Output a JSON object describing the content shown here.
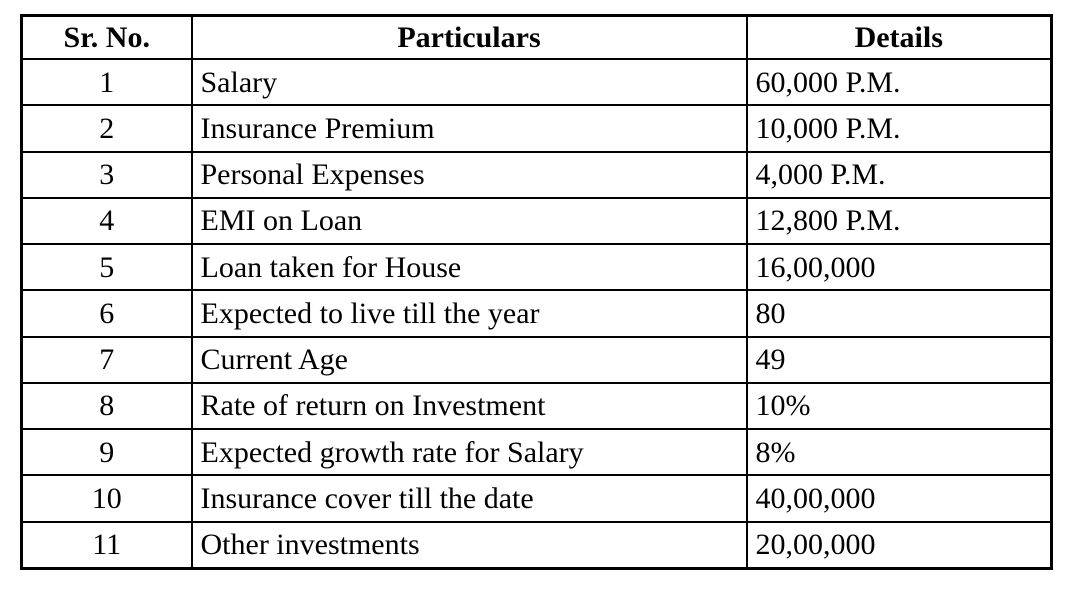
{
  "colors": {
    "border": "#000000",
    "background": "#ffffff",
    "text": "#000000"
  },
  "table": {
    "headers": {
      "sr": "Sr. No.",
      "particulars": "Particulars",
      "details": "Details"
    },
    "rows": [
      {
        "sr": "1",
        "particulars": "Salary",
        "details": "60,000 P.M."
      },
      {
        "sr": "2",
        "particulars": "Insurance Premium",
        "details": "10,000 P.M."
      },
      {
        "sr": "3",
        "particulars": "Personal Expenses",
        "details": "4,000 P.M."
      },
      {
        "sr": "4",
        "particulars": "EMI on Loan",
        "details": "12,800 P.M."
      },
      {
        "sr": "5",
        "particulars": "Loan taken for House",
        "details": "16,00,000"
      },
      {
        "sr": "6",
        "particulars": "Expected to live till the year",
        "details": "80"
      },
      {
        "sr": "7",
        "particulars": "Current Age",
        "details": "49"
      },
      {
        "sr": "8",
        "particulars": "Rate of return on Investment",
        "details": "10%"
      },
      {
        "sr": "9",
        "particulars": "Expected growth rate for Salary",
        "details": "8%"
      },
      {
        "sr": "10",
        "particulars": "Insurance cover till the date",
        "details": "40,00,000"
      },
      {
        "sr": "11",
        "particulars": "Other investments",
        "details": "20,00,000"
      }
    ]
  },
  "chart_data": {
    "type": "table",
    "title": "",
    "columns": [
      "Sr. No.",
      "Particulars",
      "Details"
    ],
    "rows": [
      [
        "1",
        "Salary",
        "60,000 P.M."
      ],
      [
        "2",
        "Insurance Premium",
        "10,000 P.M."
      ],
      [
        "3",
        "Personal Expenses",
        "4,000 P.M."
      ],
      [
        "4",
        "EMI on Loan",
        "12,800 P.M."
      ],
      [
        "5",
        "Loan taken for House",
        "16,00,000"
      ],
      [
        "6",
        "Expected to live till the year",
        "80"
      ],
      [
        "7",
        "Current Age",
        "49"
      ],
      [
        "8",
        "Rate of return on Investment",
        "10%"
      ],
      [
        "9",
        "Expected growth rate for Salary",
        "8%"
      ],
      [
        "10",
        "Insurance cover till the date",
        "40,00,000"
      ],
      [
        "11",
        "Other investments",
        "20,00,000"
      ]
    ]
  }
}
